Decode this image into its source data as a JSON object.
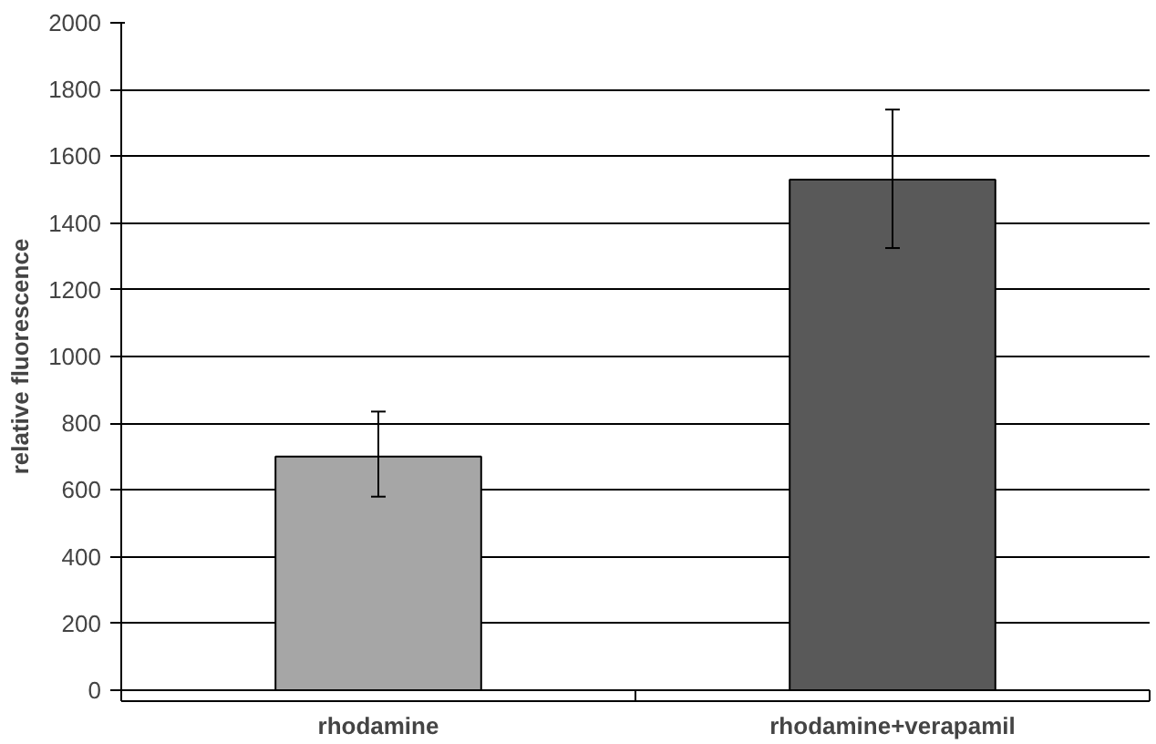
{
  "chart_data": {
    "type": "bar",
    "ylabel": "relative fluorescence",
    "categories": [
      "rhodamine",
      "rhodamine+verapamil"
    ],
    "values": [
      700,
      1530
    ],
    "colors": [
      "#a6a6a6",
      "#595959"
    ],
    "errors": [
      [
        580,
        835
      ],
      [
        1325,
        1740
      ]
    ],
    "ylim": [
      0,
      2000
    ],
    "yticks": [
      0,
      200,
      400,
      600,
      800,
      1000,
      1200,
      1400,
      1600,
      1800,
      2000
    ],
    "grid": "y"
  }
}
